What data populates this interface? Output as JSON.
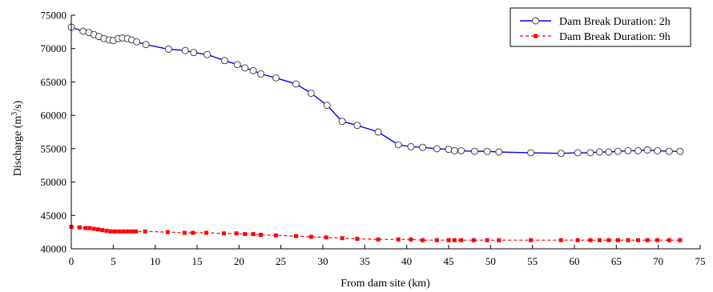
{
  "chart_data": {
    "type": "line",
    "title": "",
    "xlabel": "From dam site (km)",
    "ylabel_main": "Discharge (m",
    "ylabel_sup": "3",
    "ylabel_end": "/s)",
    "xlim": [
      0,
      75
    ],
    "ylim": [
      40000,
      75000
    ],
    "xticks": [
      0,
      5,
      10,
      15,
      20,
      25,
      30,
      35,
      40,
      45,
      50,
      55,
      60,
      65,
      70,
      75
    ],
    "yticks": [
      40000,
      45000,
      50000,
      55000,
      60000,
      65000,
      70000,
      75000
    ],
    "grid": false,
    "legend_position": "top-right",
    "series": [
      {
        "name": "Dam Break Duration: 2h",
        "color": "#0000ff",
        "marker": "circle",
        "line": "solid",
        "points": [
          [
            0,
            73200
          ],
          [
            1.4,
            72600
          ],
          [
            2.1,
            72400
          ],
          [
            2.7,
            72100
          ],
          [
            3.3,
            71800
          ],
          [
            3.9,
            71500
          ],
          [
            4.5,
            71300
          ],
          [
            5.0,
            71200
          ],
          [
            5.6,
            71500
          ],
          [
            6.1,
            71600
          ],
          [
            6.7,
            71500
          ],
          [
            7.2,
            71300
          ],
          [
            7.8,
            71000
          ],
          [
            8.9,
            70600
          ],
          [
            11.6,
            69900
          ],
          [
            13.6,
            69700
          ],
          [
            14.6,
            69400
          ],
          [
            16.2,
            69100
          ],
          [
            18.3,
            68200
          ],
          [
            19.8,
            67600
          ],
          [
            20.7,
            67100
          ],
          [
            21.7,
            66700
          ],
          [
            22.6,
            66200
          ],
          [
            24.4,
            65600
          ],
          [
            26.8,
            64700
          ],
          [
            28.6,
            63300
          ],
          [
            30.5,
            61500
          ],
          [
            32.3,
            59100
          ],
          [
            34.1,
            58500
          ],
          [
            36.6,
            57500
          ],
          [
            39.0,
            55600
          ],
          [
            40.5,
            55300
          ],
          [
            41.9,
            55200
          ],
          [
            43.6,
            55000
          ],
          [
            45.0,
            54900
          ],
          [
            45.7,
            54700
          ],
          [
            46.5,
            54700
          ],
          [
            48.1,
            54600
          ],
          [
            49.6,
            54600
          ],
          [
            51.0,
            54500
          ],
          [
            54.8,
            54400
          ],
          [
            58.4,
            54300
          ],
          [
            60.4,
            54400
          ],
          [
            61.9,
            54400
          ],
          [
            63.0,
            54500
          ],
          [
            64.1,
            54500
          ],
          [
            65.2,
            54600
          ],
          [
            66.4,
            54700
          ],
          [
            67.6,
            54700
          ],
          [
            68.7,
            54800
          ],
          [
            69.9,
            54700
          ],
          [
            71.3,
            54600
          ],
          [
            72.6,
            54600
          ]
        ]
      },
      {
        "name": "Dam Break Duration: 9h",
        "color": "#ff0000",
        "marker": "square",
        "line": "dashed",
        "points": [
          [
            0,
            43300
          ],
          [
            1.0,
            43200
          ],
          [
            1.7,
            43100
          ],
          [
            2.2,
            43100
          ],
          [
            2.7,
            43000
          ],
          [
            3.2,
            42900
          ],
          [
            3.7,
            42800
          ],
          [
            4.2,
            42700
          ],
          [
            4.7,
            42600
          ],
          [
            5.2,
            42600
          ],
          [
            5.7,
            42600
          ],
          [
            6.2,
            42600
          ],
          [
            6.7,
            42600
          ],
          [
            7.2,
            42600
          ],
          [
            7.7,
            42600
          ],
          [
            8.8,
            42600
          ],
          [
            11.5,
            42500
          ],
          [
            13.5,
            42400
          ],
          [
            14.5,
            42400
          ],
          [
            16.1,
            42400
          ],
          [
            18.2,
            42300
          ],
          [
            19.7,
            42300
          ],
          [
            20.7,
            42200
          ],
          [
            21.7,
            42200
          ],
          [
            22.6,
            42100
          ],
          [
            24.4,
            42000
          ],
          [
            26.8,
            41900
          ],
          [
            28.6,
            41800
          ],
          [
            30.4,
            41700
          ],
          [
            32.3,
            41600
          ],
          [
            34.1,
            41500
          ],
          [
            36.6,
            41400
          ],
          [
            39.0,
            41400
          ],
          [
            40.5,
            41400
          ],
          [
            41.9,
            41300
          ],
          [
            43.6,
            41300
          ],
          [
            45.0,
            41300
          ],
          [
            45.7,
            41300
          ],
          [
            46.5,
            41300
          ],
          [
            48.0,
            41300
          ],
          [
            49.6,
            41300
          ],
          [
            51.0,
            41300
          ],
          [
            54.8,
            41300
          ],
          [
            58.4,
            41300
          ],
          [
            60.4,
            41300
          ],
          [
            61.9,
            41300
          ],
          [
            63.0,
            41300
          ],
          [
            64.1,
            41300
          ],
          [
            65.2,
            41300
          ],
          [
            66.4,
            41300
          ],
          [
            67.6,
            41300
          ],
          [
            68.7,
            41300
          ],
          [
            69.9,
            41300
          ],
          [
            71.3,
            41300
          ],
          [
            72.6,
            41300
          ]
        ]
      }
    ]
  }
}
